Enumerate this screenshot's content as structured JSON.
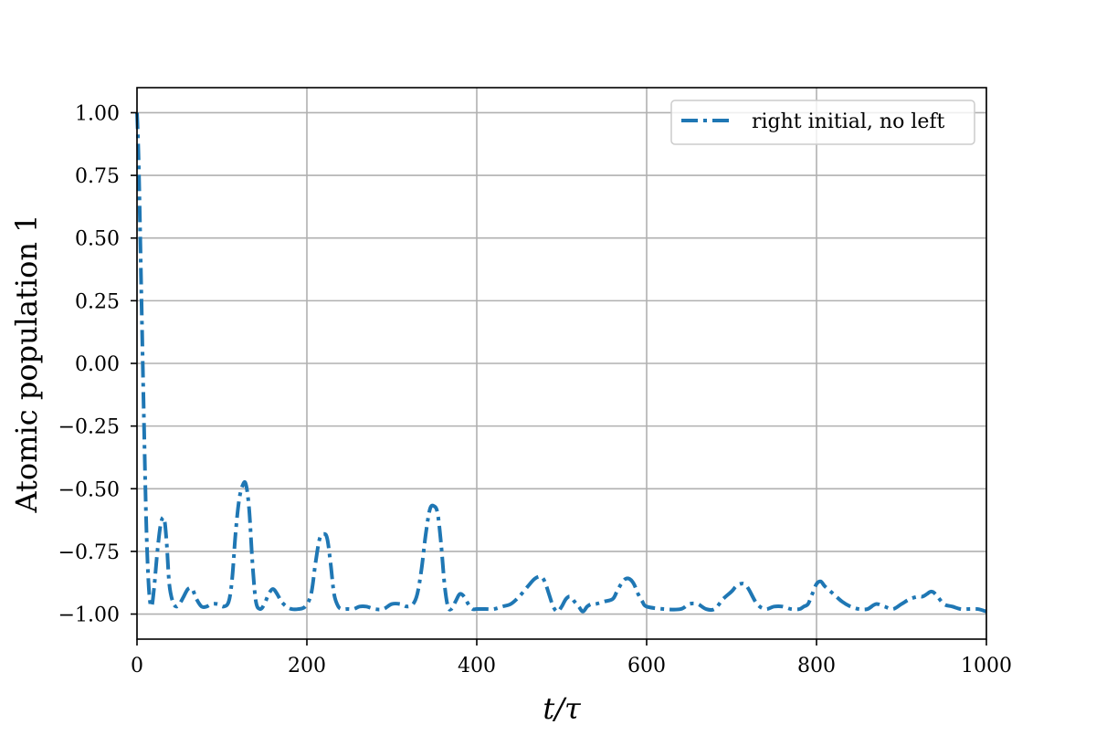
{
  "chart_data": {
    "type": "line",
    "title": "",
    "xlabel": "t/τ",
    "ylabel": "Atomic population 1",
    "xlim": [
      0,
      1000
    ],
    "ylim": [
      -1.1,
      1.1
    ],
    "xticks": [
      0,
      200,
      400,
      600,
      800,
      1000
    ],
    "xtick_labels": [
      "0",
      "200",
      "400",
      "600",
      "800",
      "1000"
    ],
    "yticks": [
      1.0,
      0.75,
      0.5,
      0.25,
      0.0,
      -0.25,
      -0.5,
      -0.75,
      -1.0
    ],
    "ytick_labels": [
      "1.00",
      "0.75",
      "0.50",
      "0.25",
      "0.00",
      "−0.25",
      "−0.50",
      "−0.75",
      "−1.00"
    ],
    "grid": true,
    "legend_position": "top-right",
    "series": [
      {
        "name": "right initial, no left",
        "color": "#1f77b4",
        "line_style": "dashdot",
        "x": [
          0,
          2,
          5,
          8,
          11,
          14,
          17,
          20,
          24,
          28,
          32,
          35,
          38,
          42,
          46,
          50,
          55,
          60,
          65,
          70,
          76,
          82,
          88,
          95,
          102,
          108,
          112,
          116,
          120,
          124,
          128,
          132,
          136,
          140,
          145,
          150,
          155,
          160,
          165,
          170,
          176,
          182,
          190,
          198,
          205,
          210,
          215,
          220,
          224,
          228,
          232,
          237,
          242,
          248,
          255,
          262,
          270,
          280,
          290,
          300,
          310,
          318,
          325,
          330,
          335,
          340,
          345,
          350,
          354,
          358,
          362,
          366,
          370,
          375,
          380,
          385,
          390,
          395,
          400,
          410,
          420,
          430,
          440,
          450,
          460,
          468,
          475,
          480,
          485,
          490,
          495,
          500,
          505,
          510,
          515,
          520,
          525,
          530,
          535,
          540,
          550,
          560,
          565,
          570,
          575,
          580,
          585,
          590,
          595,
          600,
          620,
          640,
          650,
          660,
          670,
          680,
          690,
          700,
          705,
          710,
          715,
          720,
          730,
          740,
          750,
          760,
          770,
          780,
          785,
          790,
          795,
          800,
          805,
          810,
          820,
          830,
          840,
          850,
          860,
          870,
          880,
          890,
          900,
          910,
          920,
          925,
          930,
          935,
          940,
          950,
          960,
          970,
          980,
          990,
          1000
        ],
        "y": [
          1.0,
          0.8,
          0.3,
          -0.2,
          -0.65,
          -0.9,
          -0.97,
          -0.9,
          -0.75,
          -0.64,
          -0.62,
          -0.72,
          -0.88,
          -0.95,
          -0.97,
          -0.96,
          -0.93,
          -0.9,
          -0.9,
          -0.94,
          -0.97,
          -0.97,
          -0.96,
          -0.96,
          -0.97,
          -0.95,
          -0.86,
          -0.68,
          -0.55,
          -0.49,
          -0.48,
          -0.58,
          -0.8,
          -0.95,
          -0.98,
          -0.96,
          -0.92,
          -0.9,
          -0.92,
          -0.95,
          -0.97,
          -0.98,
          -0.98,
          -0.97,
          -0.92,
          -0.8,
          -0.7,
          -0.68,
          -0.7,
          -0.8,
          -0.92,
          -0.97,
          -0.98,
          -0.98,
          -0.98,
          -0.97,
          -0.97,
          -0.98,
          -0.98,
          -0.96,
          -0.96,
          -0.97,
          -0.96,
          -0.92,
          -0.82,
          -0.68,
          -0.58,
          -0.57,
          -0.6,
          -0.72,
          -0.88,
          -0.97,
          -0.98,
          -0.95,
          -0.92,
          -0.93,
          -0.96,
          -0.98,
          -0.98,
          -0.98,
          -0.98,
          -0.97,
          -0.96,
          -0.93,
          -0.89,
          -0.86,
          -0.85,
          -0.87,
          -0.92,
          -0.97,
          -0.99,
          -0.97,
          -0.94,
          -0.93,
          -0.95,
          -0.97,
          -0.99,
          -0.97,
          -0.96,
          -0.96,
          -0.95,
          -0.94,
          -0.91,
          -0.88,
          -0.86,
          -0.86,
          -0.88,
          -0.92,
          -0.95,
          -0.97,
          -0.98,
          -0.98,
          -0.96,
          -0.96,
          -0.98,
          -0.98,
          -0.94,
          -0.91,
          -0.89,
          -0.88,
          -0.88,
          -0.9,
          -0.96,
          -0.98,
          -0.97,
          -0.97,
          -0.98,
          -0.98,
          -0.97,
          -0.96,
          -0.92,
          -0.88,
          -0.87,
          -0.89,
          -0.92,
          -0.95,
          -0.97,
          -0.98,
          -0.98,
          -0.96,
          -0.97,
          -0.98,
          -0.96,
          -0.94,
          -0.93,
          -0.93,
          -0.92,
          -0.91,
          -0.92,
          -0.96,
          -0.97,
          -0.98,
          -0.98,
          -0.98,
          -0.99
        ]
      }
    ]
  }
}
